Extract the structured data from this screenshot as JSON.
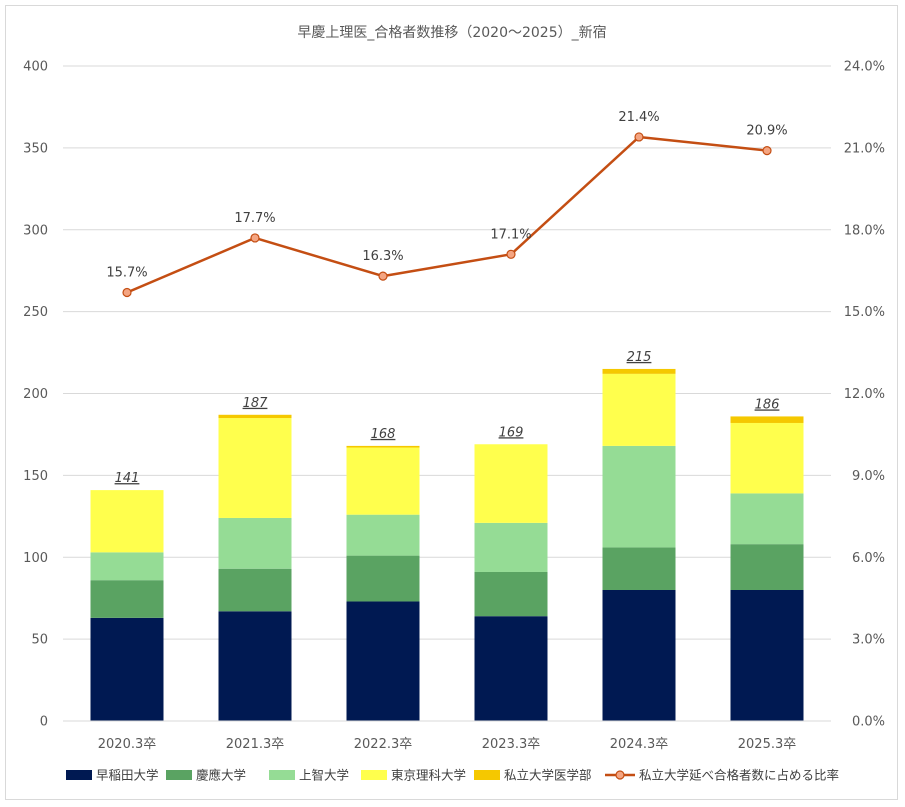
{
  "chart_data": {
    "type": "bar",
    "stacked": true,
    "title": "早慶上理医_合格者数推移（2020～2025）_新宿",
    "categories": [
      "2020.3卒",
      "2021.3卒",
      "2022.3卒",
      "2023.3卒",
      "2024.3卒",
      "2025.3卒"
    ],
    "series": [
      {
        "name": "早稲田大学",
        "color": "#001952",
        "values": [
          63,
          67,
          73,
          64,
          80,
          80
        ]
      },
      {
        "name": "慶應大学",
        "color": "#5aa362",
        "values": [
          23,
          26,
          28,
          27,
          26,
          28
        ]
      },
      {
        "name": "上智大学",
        "color": "#95dc95",
        "values": [
          17,
          31,
          25,
          30,
          62,
          31
        ]
      },
      {
        "name": "東京理科大学",
        "color": "#ffff4d",
        "values": [
          38,
          61,
          41,
          48,
          44,
          43
        ]
      },
      {
        "name": "私立大学医学部",
        "color": "#f5c800",
        "values": [
          0,
          2,
          1,
          0,
          3,
          4
        ]
      }
    ],
    "totals": [
      "141",
      "187",
      "168",
      "169",
      "215",
      "186"
    ],
    "line_series": {
      "name": "私立大学延べ合格者数に占める比率",
      "color": "#c44e13",
      "marker_fill": "#f4a582",
      "values": [
        15.7,
        17.7,
        16.3,
        17.1,
        21.4,
        20.9
      ],
      "labels": [
        "15.7%",
        "17.7%",
        "16.3%",
        "17.1%",
        "21.4%",
        "20.9%"
      ]
    },
    "y_left": {
      "min": 0,
      "max": 400,
      "ticks": [
        "0",
        "50",
        "100",
        "150",
        "200",
        "250",
        "300",
        "350",
        "400"
      ]
    },
    "y_right": {
      "min": 0,
      "max": 24,
      "ticks": [
        "0.0%",
        "3.0%",
        "6.0%",
        "9.0%",
        "12.0%",
        "15.0%",
        "18.0%",
        "21.0%",
        "24.0%"
      ]
    },
    "grid": true,
    "legend_position": "bottom"
  }
}
